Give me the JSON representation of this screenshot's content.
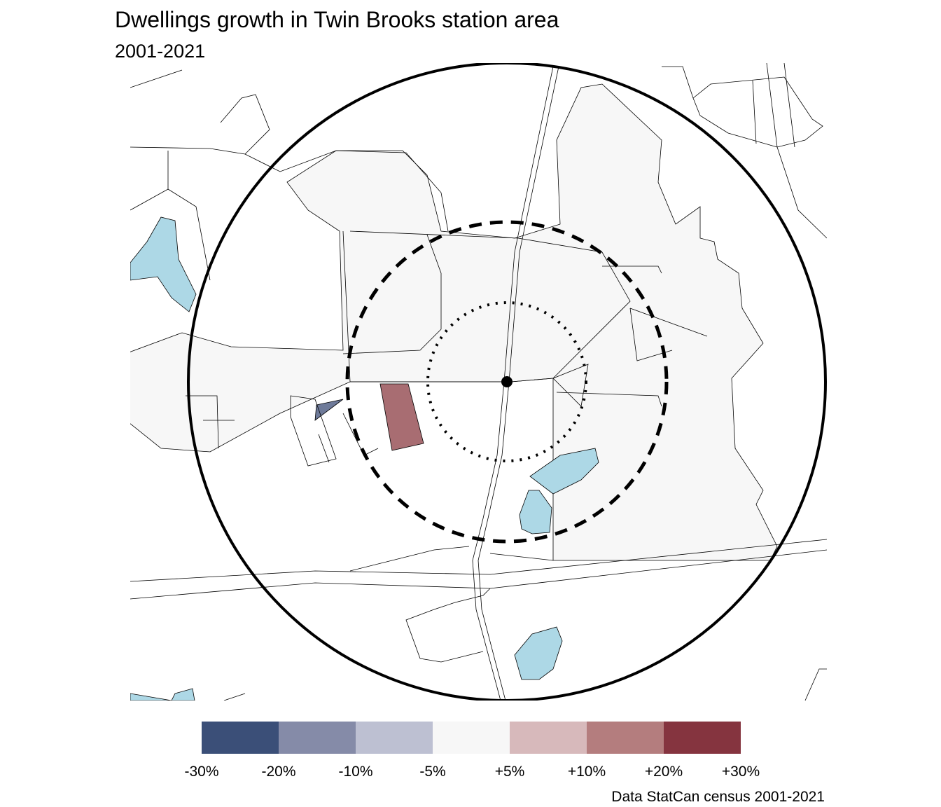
{
  "title": "Dwellings growth in Twin Brooks station area",
  "subtitle": "2001-2021",
  "caption": "Data StatCan census 2001-2021",
  "legend": {
    "labels": [
      "-30%",
      "-20%",
      "-10%",
      "-5%",
      "+5%",
      "+10%",
      "+20%",
      "+30%"
    ],
    "colors": [
      "#3b4f78",
      "#858ba8",
      "#bdc0d2",
      "#f7f7f7",
      "#d7b9bb",
      "#b47d7e",
      "#85343f"
    ]
  },
  "colors": {
    "water": "#add8e6",
    "area": "#f7f7f7",
    "growth_high": "#a86d72",
    "decline": "#6e7a99"
  }
}
